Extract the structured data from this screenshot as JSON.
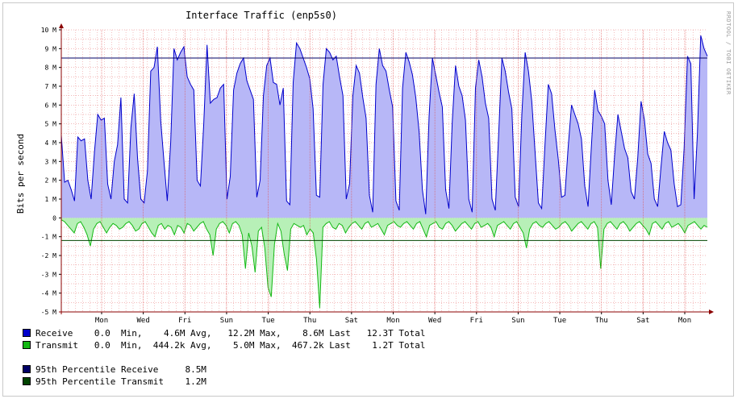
{
  "chart_data": {
    "type": "area",
    "title": "Interface Traffic (enp5s0)",
    "ylabel": "Bits per second",
    "watermark": "RRDTOOL / TOBI OETIKER",
    "ylim": [
      -5,
      10
    ],
    "y_unit": "M",
    "y_ticks": [
      "10 M",
      "9 M",
      "8 M",
      "7 M",
      "6 M",
      "5 M",
      "4 M",
      "3 M",
      "2 M",
      "1 M",
      "0",
      "-1 M",
      "-2 M",
      "-3 M",
      "-4 M",
      "-5 M"
    ],
    "x_ticks": [
      "Mon",
      "Wed",
      "Fri",
      "Sun",
      "Tue",
      "Thu",
      "Sat",
      "Mon",
      "Wed",
      "Fri",
      "Sun",
      "Tue",
      "Thu",
      "Sat",
      "Mon"
    ],
    "grid": true,
    "colors": {
      "receive_fill": "#b7b7f7",
      "receive_line": "#0000cc",
      "transmit_fill": "#b7f0b7",
      "transmit_line": "#14b814",
      "p95_receive": "#000066",
      "p95_transmit": "#004400",
      "grid": "#e05050",
      "axis": "#8b0000"
    },
    "percentile_95": {
      "receive": 8.5,
      "transmit": -1.2
    },
    "series": [
      {
        "name": "Receive",
        "values": [
          4.4,
          1.9,
          2.0,
          1.5,
          0.9,
          4.3,
          4.1,
          4.2,
          2.0,
          1.0,
          3.5,
          5.5,
          5.2,
          5.3,
          1.8,
          1.0,
          3.0,
          3.9,
          6.4,
          1.0,
          0.8,
          4.8,
          6.6,
          3.2,
          1.0,
          0.8,
          2.5,
          7.8,
          8.0,
          9.1,
          5.2,
          3.0,
          0.9,
          4.0,
          9.0,
          8.4,
          8.8,
          9.1,
          7.5,
          7.1,
          6.8,
          2.0,
          1.7,
          5.0,
          9.2,
          6.1,
          6.3,
          6.4,
          6.9,
          7.1,
          1.0,
          2.2,
          6.8,
          7.7,
          8.2,
          8.5,
          7.3,
          6.8,
          6.3,
          1.1,
          2.0,
          6.5,
          8.1,
          8.5,
          7.2,
          7.1,
          6.0,
          6.9,
          0.9,
          0.7,
          7.2,
          9.3,
          9.0,
          8.5,
          8.0,
          7.4,
          5.8,
          1.2,
          1.1,
          7.1,
          9.0,
          8.8,
          8.4,
          8.6,
          7.5,
          6.5,
          1.0,
          1.8,
          6.5,
          8.1,
          7.7,
          6.4,
          5.3,
          1.2,
          0.3,
          7.1,
          9.0,
          8.1,
          7.8,
          6.8,
          5.9,
          0.9,
          0.4,
          6.9,
          8.8,
          8.3,
          7.6,
          6.4,
          4.6,
          1.5,
          0.2,
          5.4,
          8.5,
          7.6,
          6.7,
          5.9,
          1.5,
          0.5,
          5.1,
          8.1,
          7.0,
          6.5,
          5.2,
          1.0,
          0.3,
          6.9,
          8.4,
          7.5,
          6.1,
          5.3,
          1.0,
          0.4,
          4.4,
          8.5,
          7.8,
          6.7,
          5.8,
          1.1,
          0.6,
          5.5,
          8.8,
          7.8,
          6.2,
          3.5,
          0.8,
          0.5,
          3.9,
          7.1,
          6.6,
          4.7,
          3.1,
          1.1,
          1.2,
          3.8,
          6.0,
          5.5,
          5.0,
          4.2,
          1.7,
          0.6,
          3.8,
          6.8,
          5.7,
          5.4,
          5.0,
          2.0,
          0.7,
          3.3,
          5.5,
          4.6,
          3.7,
          3.2,
          1.4,
          1.0,
          3.2,
          6.2,
          5.2,
          3.4,
          2.9,
          1.0,
          0.6,
          2.7,
          4.6,
          4.0,
          3.6,
          1.8,
          0.6,
          0.7,
          3.7,
          8.6,
          8.2,
          1.0,
          4.5,
          9.7,
          9.0,
          8.6
        ]
      },
      {
        "name": "Transmit",
        "values": [
          -0.1,
          -0.2,
          -0.4,
          -0.6,
          -0.8,
          -0.3,
          -0.2,
          -0.5,
          -0.9,
          -1.5,
          -0.6,
          -0.3,
          -0.2,
          -0.5,
          -0.8,
          -0.5,
          -0.3,
          -0.4,
          -0.6,
          -0.5,
          -0.3,
          -0.2,
          -0.4,
          -0.7,
          -0.6,
          -0.3,
          -0.2,
          -0.5,
          -0.8,
          -1.0,
          -0.4,
          -0.3,
          -0.6,
          -0.4,
          -0.5,
          -0.9,
          -0.4,
          -0.5,
          -0.8,
          -0.3,
          -0.4,
          -0.7,
          -0.5,
          -0.3,
          -0.2,
          -0.6,
          -0.9,
          -2.0,
          -0.6,
          -0.3,
          -0.2,
          -0.4,
          -0.8,
          -0.3,
          -0.2,
          -0.4,
          -0.9,
          -2.7,
          -0.8,
          -1.5,
          -2.9,
          -0.7,
          -0.5,
          -1.6,
          -3.7,
          -4.2,
          -1.4,
          -0.3,
          -0.7,
          -1.9,
          -2.8,
          -0.6,
          -0.3,
          -0.4,
          -0.5,
          -0.4,
          -0.9,
          -0.6,
          -0.8,
          -2.2,
          -4.8,
          -0.5,
          -0.3,
          -0.2,
          -0.5,
          -0.6,
          -0.3,
          -0.4,
          -0.8,
          -0.5,
          -0.3,
          -0.2,
          -0.4,
          -0.6,
          -0.3,
          -0.2,
          -0.5,
          -0.4,
          -0.3,
          -0.6,
          -0.9,
          -0.4,
          -0.3,
          -0.2,
          -0.4,
          -0.5,
          -0.3,
          -0.2,
          -0.4,
          -0.6,
          -0.3,
          -0.2,
          -0.6,
          -1.0,
          -0.4,
          -0.3,
          -0.2,
          -0.5,
          -0.6,
          -0.3,
          -0.2,
          -0.4,
          -0.7,
          -0.5,
          -0.3,
          -0.2,
          -0.4,
          -0.6,
          -0.3,
          -0.2,
          -0.5,
          -0.4,
          -0.3,
          -0.5,
          -1.0,
          -0.4,
          -0.3,
          -0.2,
          -0.4,
          -0.6,
          -0.3,
          -0.2,
          -0.5,
          -0.8,
          -1.6,
          -0.6,
          -0.3,
          -0.2,
          -0.4,
          -0.5,
          -0.3,
          -0.2,
          -0.4,
          -0.6,
          -0.5,
          -0.3,
          -0.2,
          -0.4,
          -0.7,
          -0.5,
          -0.3,
          -0.2,
          -0.4,
          -0.6,
          -0.3,
          -0.2,
          -0.5,
          -2.7,
          -0.6,
          -0.3,
          -0.2,
          -0.4,
          -0.6,
          -0.3,
          -0.2,
          -0.4,
          -0.7,
          -0.5,
          -0.3,
          -0.2,
          -0.4,
          -0.6,
          -0.9,
          -0.3,
          -0.2,
          -0.4,
          -0.6,
          -0.3,
          -0.2,
          -0.5,
          -0.4,
          -0.3,
          -0.5,
          -0.8,
          -0.4,
          -0.3,
          -0.2,
          -0.4,
          -0.6,
          -0.4,
          -0.5
        ]
      }
    ]
  },
  "legend": {
    "receive": {
      "label": "Receive ",
      "stats": "   0.0  Min,    4.6M Avg,   12.2M Max,    8.6M Last   12.3T Total"
    },
    "transmit": {
      "label": "Transmit",
      "stats": "   0.0  Min,  444.2k Avg,    5.0M Max,  467.2k Last    1.2T Total"
    },
    "p95_receive": {
      "label": "95th Percentile Receive ",
      "value": "    8.5M"
    },
    "p95_transmit": {
      "label": "95th Percentile Transmit",
      "value": "    1.2M"
    }
  }
}
